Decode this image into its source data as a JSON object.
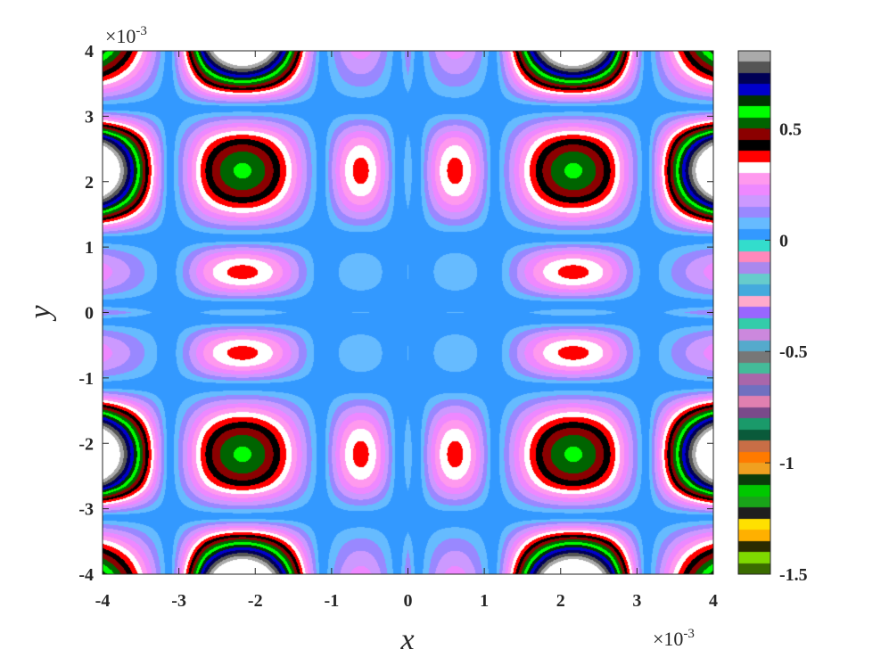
{
  "chart_data": {
    "type": "heatmap",
    "title": "",
    "xlabel": "x",
    "ylabel": "y",
    "xlim": [
      -4,
      4
    ],
    "ylim": [
      -4,
      4
    ],
    "x_exponent_label": "×10",
    "x_exponent_power": "-3",
    "y_exponent_label": "×10",
    "y_exponent_power": "-3",
    "xticks": [
      "-4",
      "-3",
      "-2",
      "-1",
      "0",
      "1",
      "2",
      "3",
      "4"
    ],
    "yticks": [
      "-4",
      "-3",
      "-2",
      "-1",
      "0",
      "1",
      "2",
      "3",
      "4"
    ],
    "colorbar": {
      "range": [
        -1.5,
        0.85
      ],
      "ticks": [
        {
          "value": 0.5,
          "label": "0.5"
        },
        {
          "value": 0,
          "label": "0"
        },
        {
          "value": -0.5,
          "label": "-0.5"
        },
        {
          "value": -1,
          "label": "-1"
        },
        {
          "value": -1.5,
          "label": "-1.5"
        }
      ]
    },
    "colormap_stops": [
      {
        "v": -1.5,
        "c": "#3a6b00"
      },
      {
        "v": -1.45,
        "c": "#7fd800"
      },
      {
        "v": -1.4,
        "c": "#2b2b00"
      },
      {
        "v": -1.35,
        "c": "#ffb000"
      },
      {
        "v": -1.3,
        "c": "#ffe000"
      },
      {
        "v": -1.25,
        "c": "#1e1e1e"
      },
      {
        "v": -1.2,
        "c": "#19a319"
      },
      {
        "v": -1.15,
        "c": "#00c800"
      },
      {
        "v": -1.1,
        "c": "#0a3d0a"
      },
      {
        "v": -1.05,
        "c": "#f0a020"
      },
      {
        "v": -1.0,
        "c": "#ff7a00"
      },
      {
        "v": -0.95,
        "c": "#c86e46"
      },
      {
        "v": -0.9,
        "c": "#0a5a3a"
      },
      {
        "v": -0.85,
        "c": "#1a9a6a"
      },
      {
        "v": -0.8,
        "c": "#7a4a8a"
      },
      {
        "v": -0.75,
        "c": "#e080b0"
      },
      {
        "v": -0.7,
        "c": "#7070c0"
      },
      {
        "v": -0.65,
        "c": "#aa66aa"
      },
      {
        "v": -0.6,
        "c": "#44bb99"
      },
      {
        "v": -0.55,
        "c": "#777777"
      },
      {
        "v": -0.5,
        "c": "#55aacc"
      },
      {
        "v": -0.45,
        "c": "#cc88dd"
      },
      {
        "v": -0.4,
        "c": "#33ccaa"
      },
      {
        "v": -0.35,
        "c": "#9966ff"
      },
      {
        "v": -0.3,
        "c": "#ffaacc"
      },
      {
        "v": -0.25,
        "c": "#44aadd"
      },
      {
        "v": -0.2,
        "c": "#66cccc"
      },
      {
        "v": -0.15,
        "c": "#aa88ee"
      },
      {
        "v": -0.1,
        "c": "#ff88bb"
      },
      {
        "v": -0.05,
        "c": "#33ddcc"
      },
      {
        "v": 0.0,
        "c": "#3399ff"
      },
      {
        "v": 0.05,
        "c": "#66bbff"
      },
      {
        "v": 0.1,
        "c": "#9988ff"
      },
      {
        "v": 0.15,
        "c": "#cc99ff"
      },
      {
        "v": 0.2,
        "c": "#ee88ff"
      },
      {
        "v": 0.25,
        "c": "#ff99ee"
      },
      {
        "v": 0.3,
        "c": "#ffffff"
      },
      {
        "v": 0.35,
        "c": "#ff0000"
      },
      {
        "v": 0.4,
        "c": "#000000"
      },
      {
        "v": 0.45,
        "c": "#8b0000"
      },
      {
        "v": 0.5,
        "c": "#006400"
      },
      {
        "v": 0.55,
        "c": "#00ff00"
      },
      {
        "v": 0.6,
        "c": "#003300"
      },
      {
        "v": 0.65,
        "c": "#0000cc"
      },
      {
        "v": 0.7,
        "c": "#000055"
      },
      {
        "v": 0.75,
        "c": "#555555"
      },
      {
        "v": 0.8,
        "c": "#aaaaaa"
      },
      {
        "v": 0.85,
        "c": "#ffffff"
      }
    ]
  }
}
